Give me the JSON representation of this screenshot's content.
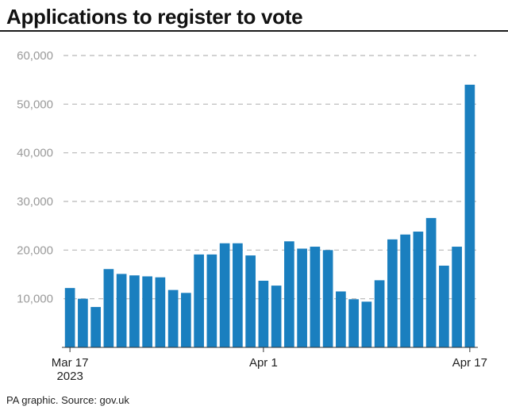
{
  "chart_data": {
    "type": "bar",
    "title": "Applications to register to vote",
    "xlabel": "",
    "ylabel": "",
    "source": "PA graphic. Source: gov.uk",
    "ylim": [
      0,
      60000
    ],
    "y_ticks": [
      10000,
      20000,
      30000,
      40000,
      50000,
      60000
    ],
    "y_tick_labels": [
      "10,000",
      "20,000",
      "30,000",
      "40,000",
      "50,000",
      "60,000"
    ],
    "grid": true,
    "bar_color": "#1a7fbf",
    "x_tick_labels": [
      {
        "index": 0,
        "lines": [
          "Mar 17",
          "2023"
        ]
      },
      {
        "index": 15,
        "lines": [
          "Apr 1"
        ]
      },
      {
        "index": 31,
        "lines": [
          "Apr 17"
        ]
      }
    ],
    "values": [
      12200,
      10000,
      8300,
      16100,
      15100,
      14800,
      14600,
      14400,
      11800,
      11200,
      19100,
      19100,
      21400,
      21400,
      18900,
      13700,
      12700,
      21800,
      20300,
      20700,
      20000,
      11500,
      9900,
      9400,
      13800,
      22200,
      23200,
      23800,
      26600,
      16800,
      20700,
      54000
    ]
  }
}
